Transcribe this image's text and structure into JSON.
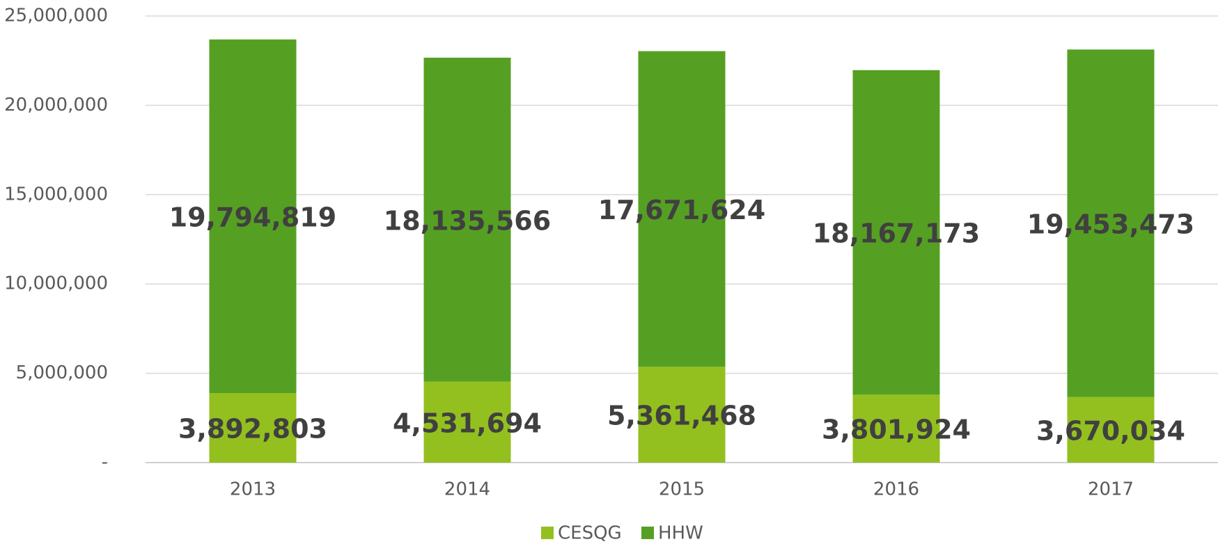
{
  "chart_data": {
    "type": "stacked_bar",
    "categories": [
      "2013",
      "2014",
      "2015",
      "2016",
      "2017"
    ],
    "series": [
      {
        "name": "CESQG",
        "color": "#93c01f",
        "values": [
          3892803,
          4531694,
          5361468,
          3801924,
          3670034
        ],
        "value_labels": [
          "3,892,803",
          "4,531,694",
          "5,361,468",
          "3,801,924",
          "3,670,034"
        ]
      },
      {
        "name": "HHW",
        "color": "#55a022",
        "values": [
          19794819,
          18135566,
          17671624,
          18167173,
          19453473
        ],
        "value_labels": [
          "19,794,819",
          "18,135,566",
          "17,671,624",
          "18,167,173",
          "19,453,473"
        ]
      }
    ],
    "ylim": [
      0,
      25000000
    ],
    "yticks": [
      {
        "value": 0,
        "label": "-"
      },
      {
        "value": 5000000,
        "label": "5,000,000"
      },
      {
        "value": 10000000,
        "label": "10,000,000"
      },
      {
        "value": 15000000,
        "label": "15,000,000"
      },
      {
        "value": 20000000,
        "label": "20,000,000"
      },
      {
        "value": 25000000,
        "label": "25,000,000"
      }
    ],
    "grid": true,
    "legend": "bottom"
  }
}
